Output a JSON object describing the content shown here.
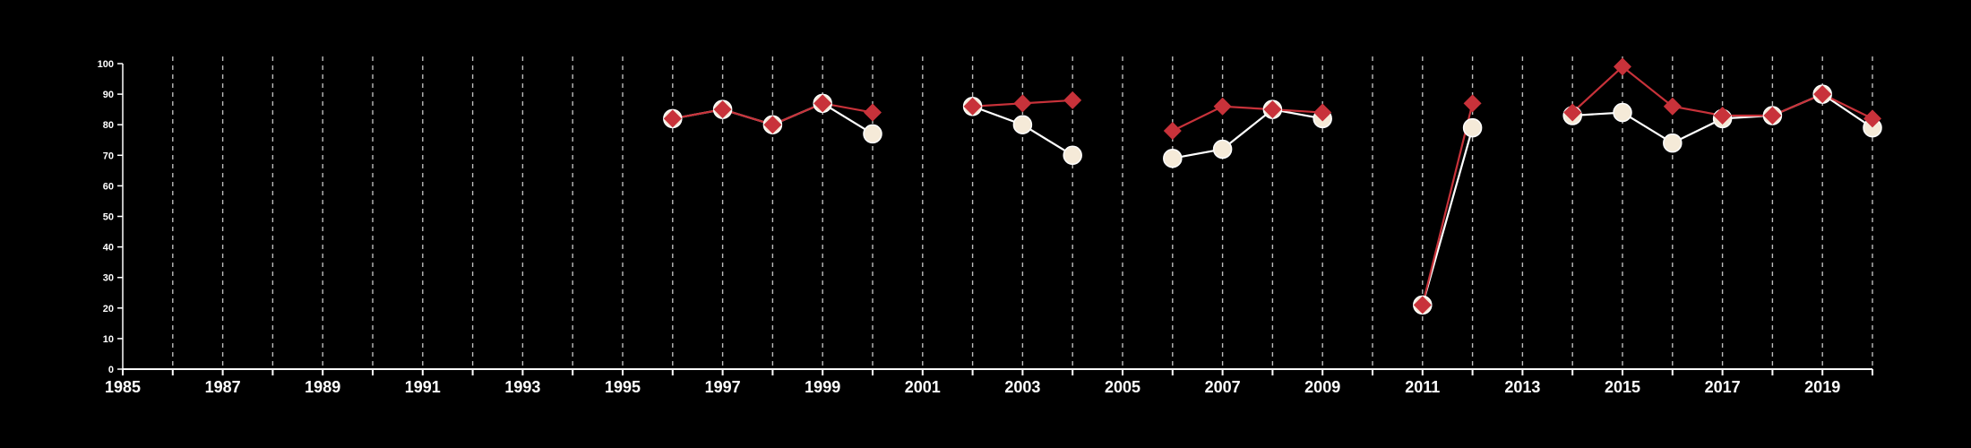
{
  "chart_data": {
    "type": "line",
    "xlim": [
      1985,
      2020
    ],
    "ylim": [
      0,
      100
    ],
    "xticks": [
      "1985",
      "1987",
      "1989",
      "1991",
      "1993",
      "1995",
      "1997",
      "1999",
      "2001",
      "2003",
      "2005",
      "2007",
      "2009",
      "2011",
      "2013",
      "2015",
      "2017",
      "2019"
    ],
    "yticks": [
      "0",
      "10",
      "20",
      "30",
      "40",
      "50",
      "60",
      "70",
      "80",
      "90",
      "100"
    ],
    "vertical_gridlines": "dashed, at every year",
    "series": [
      {
        "marker": "circle",
        "color": "#ffffff",
        "fill": "#f5ead8",
        "points": [
          [
            1996,
            82
          ],
          [
            1997,
            85
          ],
          [
            1998,
            80
          ],
          [
            1999,
            87
          ],
          [
            2000,
            77
          ],
          [
            2002,
            86
          ],
          [
            2003,
            80
          ],
          [
            2004,
            70
          ],
          [
            2006,
            69
          ],
          [
            2007,
            72
          ],
          [
            2008,
            85
          ],
          [
            2009,
            82
          ],
          [
            2011,
            21
          ],
          [
            2012,
            79
          ],
          [
            2014,
            83
          ],
          [
            2015,
            84
          ],
          [
            2016,
            74
          ],
          [
            2017,
            82
          ],
          [
            2018,
            83
          ],
          [
            2019,
            90
          ],
          [
            2020,
            79
          ]
        ]
      },
      {
        "marker": "diamond",
        "color": "#c8323a",
        "points": [
          [
            1996,
            82
          ],
          [
            1997,
            85
          ],
          [
            1998,
            80
          ],
          [
            1999,
            87
          ],
          [
            2000,
            84
          ],
          [
            2002,
            86
          ],
          [
            2003,
            87
          ],
          [
            2004,
            88
          ],
          [
            2006,
            78
          ],
          [
            2007,
            86
          ],
          [
            2008,
            85
          ],
          [
            2009,
            84
          ],
          [
            2011,
            21
          ],
          [
            2012,
            87
          ],
          [
            2014,
            84
          ],
          [
            2015,
            99
          ],
          [
            2016,
            86
          ],
          [
            2017,
            83
          ],
          [
            2018,
            83
          ],
          [
            2019,
            90
          ],
          [
            2020,
            82
          ]
        ]
      }
    ]
  }
}
